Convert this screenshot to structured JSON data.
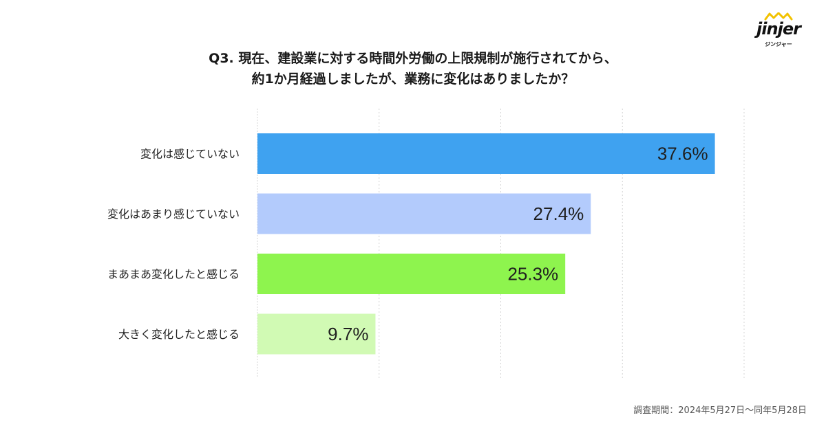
{
  "brand": {
    "name": "jinjer",
    "sub": "ジンジャー"
  },
  "title_lines": [
    "Q3. 現在、建設業に対する時間外労働の上限規制が施行されてから、",
    "約1か月経過しましたが、業務に変化はありましたか？"
  ],
  "footnote": "調査期間：2024年5月27日〜同年5月28日",
  "chart_data": {
    "type": "bar",
    "orientation": "horizontal",
    "categories": [
      "変化は感じていない",
      "変化はあまり感じていない",
      "まあまあ変化したと感じる",
      "大きく変化したと感じる"
    ],
    "values": [
      37.6,
      27.4,
      25.3,
      9.7
    ],
    "value_labels": [
      "37.6%",
      "27.4%",
      "25.3%",
      "9.7%"
    ],
    "colors": [
      "#3fa2f0",
      "#b3cbfc",
      "#8ef44e",
      "#d1fab4"
    ],
    "xlim": [
      0,
      40
    ],
    "grid": true
  }
}
